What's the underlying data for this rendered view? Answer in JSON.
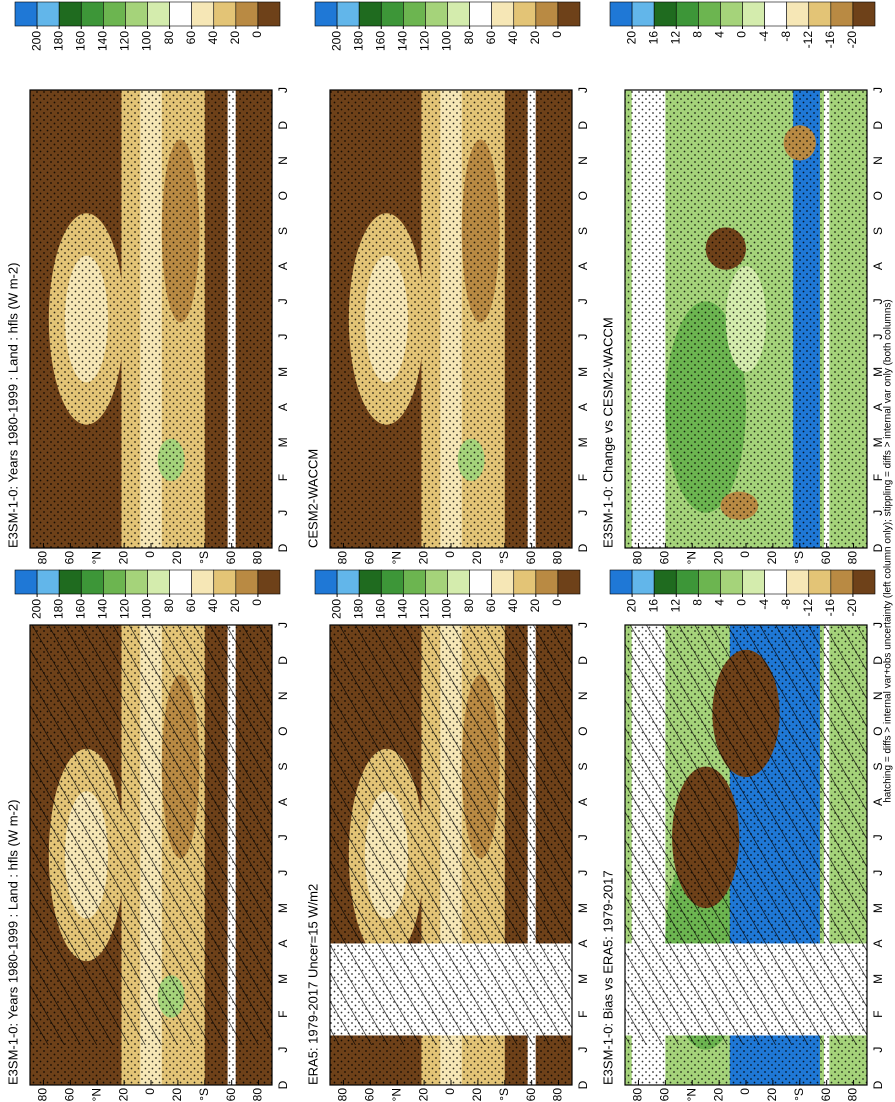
{
  "chart_data": [
    {
      "type": "contour",
      "title": "E3SM-1-0: Years 1980-1999 : Land : hfls (W m-2)",
      "categories": [
        "D",
        "J",
        "F",
        "M",
        "A",
        "M",
        "J",
        "J",
        "A",
        "S",
        "O",
        "N",
        "D",
        "J"
      ],
      "ylim": [
        -90,
        90
      ],
      "yticks": [
        80,
        60,
        {
          "value": 40,
          "label": "°N"
        },
        20,
        0,
        {
          "value": -20,
          "label": "20"
        },
        {
          "value": -40,
          "label": "°S"
        },
        {
          "value": -60,
          "label": "60"
        },
        {
          "value": -80,
          "label": "80"
        }
      ],
      "colorbar_ticks": [
        200,
        180,
        160,
        140,
        120,
        100,
        80,
        60,
        40,
        20,
        0
      ],
      "colors": [
        "#1f78d6",
        "#62b6ea",
        "#1f6b1f",
        "#3d9638",
        "#6cb550",
        "#a5d37a",
        "#d4ecad",
        "#ffffff",
        "#f6e7b6",
        "#e3c476",
        "#b98a43",
        "#6e4119"
      ],
      "hatching": true,
      "stippling": true
    },
    {
      "type": "contour",
      "title": "E3SM-1-0: Years 1980-1999 : Land : hfls (W m-2)",
      "categories": [
        "D",
        "J",
        "F",
        "M",
        "A",
        "M",
        "J",
        "J",
        "A",
        "S",
        "O",
        "N",
        "D",
        "J"
      ],
      "ylim": [
        -90,
        90
      ],
      "yticks": [
        80,
        60,
        {
          "value": 40,
          "label": "°N"
        },
        20,
        0,
        {
          "value": -20,
          "label": "20"
        },
        {
          "value": -40,
          "label": "°S"
        },
        {
          "value": -60,
          "label": "60"
        },
        {
          "value": -80,
          "label": "80"
        }
      ],
      "colorbar_ticks": [
        200,
        180,
        160,
        140,
        120,
        100,
        80,
        60,
        40,
        20,
        0
      ],
      "colors": [
        "#1f78d6",
        "#62b6ea",
        "#1f6b1f",
        "#3d9638",
        "#6cb550",
        "#a5d37a",
        "#d4ecad",
        "#ffffff",
        "#f6e7b6",
        "#e3c476",
        "#b98a43",
        "#6e4119"
      ],
      "hatching": false,
      "stippling": true
    },
    {
      "type": "contour",
      "title": "ERA5: 1979-2017 Uncer=15 W/m2",
      "categories": [
        "D",
        "J",
        "F",
        "M",
        "A",
        "M",
        "J",
        "J",
        "A",
        "S",
        "O",
        "N",
        "D",
        "J"
      ],
      "ylim": [
        -90,
        90
      ],
      "yticks": [
        80,
        60,
        {
          "value": 40,
          "label": "°N"
        },
        20,
        0,
        {
          "value": -20,
          "label": "20"
        },
        {
          "value": -40,
          "label": "°S"
        },
        {
          "value": -60,
          "label": "60"
        },
        {
          "value": -80,
          "label": "80"
        }
      ],
      "colorbar_ticks": [
        200,
        180,
        160,
        140,
        120,
        100,
        80,
        60,
        40,
        20,
        0
      ],
      "colors": [
        "#1f78d6",
        "#62b6ea",
        "#1f6b1f",
        "#3d9638",
        "#6cb550",
        "#a5d37a",
        "#d4ecad",
        "#ffffff",
        "#f6e7b6",
        "#e3c476",
        "#b98a43",
        "#6e4119"
      ],
      "hatching": true,
      "stippling": true
    },
    {
      "type": "contour",
      "title": "CESM2-WACCM",
      "categories": [
        "D",
        "J",
        "F",
        "M",
        "A",
        "M",
        "J",
        "J",
        "A",
        "S",
        "O",
        "N",
        "D",
        "J"
      ],
      "ylim": [
        -90,
        90
      ],
      "yticks": [
        80,
        60,
        {
          "value": 40,
          "label": "°N"
        },
        20,
        0,
        {
          "value": -20,
          "label": "20"
        },
        {
          "value": -40,
          "label": "°S"
        },
        {
          "value": -60,
          "label": "60"
        },
        {
          "value": -80,
          "label": "80"
        }
      ],
      "colorbar_ticks": [
        200,
        180,
        160,
        140,
        120,
        100,
        80,
        60,
        40,
        20,
        0
      ],
      "colors": [
        "#1f78d6",
        "#62b6ea",
        "#1f6b1f",
        "#3d9638",
        "#6cb550",
        "#a5d37a",
        "#d4ecad",
        "#ffffff",
        "#f6e7b6",
        "#e3c476",
        "#b98a43",
        "#6e4119"
      ],
      "hatching": false,
      "stippling": true
    },
    {
      "type": "contour",
      "title": "E3SM-1-0: Bias vs ERA5: 1979-2017",
      "categories": [
        "D",
        "J",
        "F",
        "M",
        "A",
        "M",
        "J",
        "J",
        "A",
        "S",
        "O",
        "N",
        "D",
        "J"
      ],
      "ylim": [
        -90,
        90
      ],
      "yticks": [
        80,
        60,
        {
          "value": 40,
          "label": "°N"
        },
        20,
        0,
        {
          "value": -20,
          "label": "20"
        },
        {
          "value": -40,
          "label": "°S"
        },
        {
          "value": -60,
          "label": "60"
        },
        {
          "value": -80,
          "label": "80"
        }
      ],
      "colorbar_ticks": [
        20,
        16,
        12,
        8,
        4,
        0,
        -4,
        -8,
        -12,
        -16,
        -20
      ],
      "colors": [
        "#1f78d6",
        "#62b6ea",
        "#1f6b1f",
        "#3d9638",
        "#6cb550",
        "#a5d37a",
        "#d4ecad",
        "#ffffff",
        "#f6e7b6",
        "#e3c476",
        "#b98a43",
        "#6e4119"
      ],
      "hatching": true,
      "stippling": true
    },
    {
      "type": "contour",
      "title": "E3SM-1-0: Change vs CESM2-WACCM",
      "categories": [
        "D",
        "J",
        "F",
        "M",
        "A",
        "M",
        "J",
        "J",
        "A",
        "S",
        "O",
        "N",
        "D",
        "J"
      ],
      "ylim": [
        -90,
        90
      ],
      "yticks": [
        80,
        60,
        {
          "value": 40,
          "label": "°N"
        },
        20,
        0,
        {
          "value": -20,
          "label": "20"
        },
        {
          "value": -40,
          "label": "°S"
        },
        {
          "value": -60,
          "label": "60"
        },
        {
          "value": -80,
          "label": "80"
        }
      ],
      "colorbar_ticks": [
        20,
        16,
        12,
        8,
        4,
        0,
        -4,
        -8,
        -12,
        -16,
        -20
      ],
      "colors": [
        "#1f78d6",
        "#62b6ea",
        "#1f6b1f",
        "#3d9638",
        "#6cb550",
        "#a5d37a",
        "#d4ecad",
        "#ffffff",
        "#f6e7b6",
        "#e3c476",
        "#b98a43",
        "#6e4119"
      ],
      "hatching": false,
      "stippling": true
    }
  ],
  "caption": "hatching = diffs > internal var+obs uncertainty (left column only); stippling = diffs > internal var only (both columns)"
}
